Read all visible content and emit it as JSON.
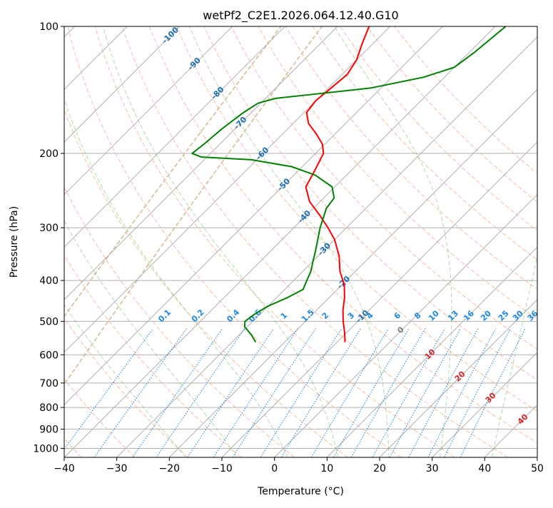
{
  "chart_data": {
    "type": "line",
    "subtype": "skew-t log-p",
    "title": "wetPf2_C2E1.2026.064.12.40.G10",
    "xlabel": "Temperature (°C)",
    "ylabel": "Pressure (hPa)",
    "xlim": [
      -40,
      50
    ],
    "ylim_hpa": [
      1050,
      100
    ],
    "x_ticks": [
      -40,
      -30,
      -20,
      -10,
      0,
      10,
      20,
      30,
      40,
      50
    ],
    "x_tick_labels": [
      "−40",
      "−30",
      "−20",
      "−10",
      "0",
      "10",
      "20",
      "30",
      "40",
      "50"
    ],
    "y_ticks": [
      1000,
      900,
      800,
      700,
      600,
      500,
      400,
      300,
      200,
      100
    ],
    "y_tick_labels": [
      "1000",
      "900",
      "800",
      "700",
      "600",
      "500",
      "400",
      "300",
      "200",
      "100"
    ],
    "series": [
      {
        "name": "Temperature",
        "color": "#ff0000",
        "points": [
          {
            "p": 560,
            "t": -8.5
          },
          {
            "p": 530,
            "t": -10.5
          },
          {
            "p": 500,
            "t": -12.8
          },
          {
            "p": 470,
            "t": -15.0
          },
          {
            "p": 440,
            "t": -17.0
          },
          {
            "p": 410,
            "t": -19.5
          },
          {
            "p": 380,
            "t": -23.0
          },
          {
            "p": 350,
            "t": -26.0
          },
          {
            "p": 320,
            "t": -30.0
          },
          {
            "p": 300,
            "t": -33.5
          },
          {
            "p": 280,
            "t": -37.5
          },
          {
            "p": 260,
            "t": -42.0
          },
          {
            "p": 240,
            "t": -45.5
          },
          {
            "p": 225,
            "t": -46.5
          },
          {
            "p": 212,
            "t": -47.5
          },
          {
            "p": 200,
            "t": -48.5
          },
          {
            "p": 190,
            "t": -50.5
          },
          {
            "p": 180,
            "t": -53.5
          },
          {
            "p": 170,
            "t": -57.0
          },
          {
            "p": 160,
            "t": -59.5
          },
          {
            "p": 150,
            "t": -60.0
          },
          {
            "p": 140,
            "t": -59.5
          },
          {
            "p": 130,
            "t": -59.0
          },
          {
            "p": 120,
            "t": -60.0
          },
          {
            "p": 110,
            "t": -62.0
          },
          {
            "p": 100,
            "t": -64.0
          }
        ]
      },
      {
        "name": "Dewpoint",
        "color": "#008000",
        "points": [
          {
            "p": 560,
            "t": -25.5
          },
          {
            "p": 540,
            "t": -27.5
          },
          {
            "p": 515,
            "t": -30.5
          },
          {
            "p": 500,
            "t": -31.5
          },
          {
            "p": 480,
            "t": -31.0
          },
          {
            "p": 460,
            "t": -30.0
          },
          {
            "p": 440,
            "t": -28.0
          },
          {
            "p": 420,
            "t": -26.5
          },
          {
            "p": 400,
            "t": -27.5
          },
          {
            "p": 380,
            "t": -28.5
          },
          {
            "p": 360,
            "t": -30.0
          },
          {
            "p": 340,
            "t": -31.5
          },
          {
            "p": 300,
            "t": -35.0
          },
          {
            "p": 270,
            "t": -37.5
          },
          {
            "p": 255,
            "t": -38.0
          },
          {
            "p": 240,
            "t": -40.5
          },
          {
            "p": 225,
            "t": -46.0
          },
          {
            "p": 215,
            "t": -52.0
          },
          {
            "p": 207,
            "t": -61.0
          },
          {
            "p": 204,
            "t": -71.0
          },
          {
            "p": 200,
            "t": -73.5
          },
          {
            "p": 190,
            "t": -73.0
          },
          {
            "p": 175,
            "t": -72.5
          },
          {
            "p": 160,
            "t": -71.5
          },
          {
            "p": 152,
            "t": -70.5
          },
          {
            "p": 148,
            "t": -68.0
          },
          {
            "p": 145,
            "t": -62.0
          },
          {
            "p": 140,
            "t": -52.0
          },
          {
            "p": 132,
            "t": -44.0
          },
          {
            "p": 125,
            "t": -40.0
          },
          {
            "p": 115,
            "t": -39.0
          },
          {
            "p": 100,
            "t": -38.0
          }
        ]
      }
    ],
    "isotherm_values": [
      -160,
      -150,
      -140,
      -130,
      -120,
      -110,
      -100,
      -90,
      -80,
      -70,
      -60,
      -50,
      -40,
      -30,
      -20,
      -10,
      0,
      10,
      20,
      30,
      40,
      50
    ],
    "dry_adiabat_theta_c": [
      -100,
      -90,
      -80,
      -70,
      -60,
      -50,
      -40,
      -30,
      -20,
      -10,
      0,
      10,
      20,
      30,
      40,
      50,
      60,
      70,
      80,
      90,
      100,
      110,
      120,
      130,
      140
    ],
    "moist_adiabat_values": [
      -20,
      -10,
      0,
      10,
      20,
      30,
      40
    ],
    "mixing_ratio_values": [
      0.1,
      0.2,
      0.4,
      0.6,
      1,
      1.5,
      2,
      3,
      4,
      6,
      8,
      10,
      13,
      16,
      20,
      25,
      30,
      36
    ],
    "isotherm_label_values": [
      -100,
      -90,
      -80,
      -70,
      -60,
      -50,
      -40,
      -30,
      -20,
      -10
    ],
    "isotherm_label_texts": [
      "-100",
      "-90",
      "-80",
      "-70",
      "-60",
      "-50",
      "-40",
      "-30",
      "-20",
      "-10"
    ],
    "mixing_ratio_label_texts": [
      "0.1",
      "0.2",
      "0.4",
      "0.6",
      "1",
      "1.5",
      "2",
      "3",
      "4",
      "6",
      "8",
      "10",
      "13",
      "16",
      "20",
      "25",
      "30",
      "36"
    ],
    "moist_label_values": [
      0,
      10,
      20,
      30,
      40
    ],
    "moist_label_texts": [
      "0",
      "10",
      "20",
      "30",
      "40"
    ],
    "colors": {
      "isotherm": "#2166ac",
      "isotherm_label": "#1f6eb4",
      "dry_adiabat": "#f4a582",
      "moist_adiabat": "#4daf4a",
      "mixing_ratio": "#1e88e5",
      "moist_label_zero": "#808080",
      "moist_label_warm": "#d62728",
      "grid": "#b0b0b0",
      "rh_curve": "#d2b48c"
    }
  }
}
